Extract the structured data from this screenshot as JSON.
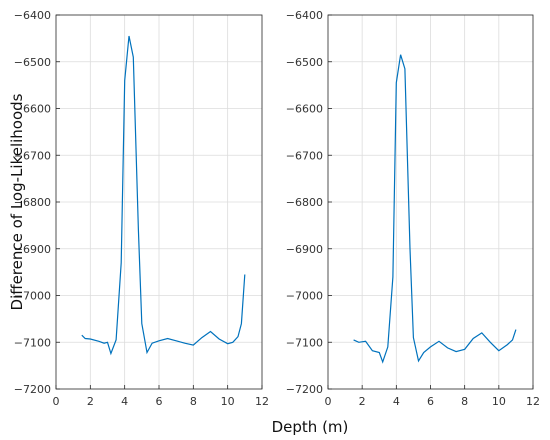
{
  "figure": {
    "xlabel": "Depth (m)",
    "ylabel": "Difference of Log-Likelihoods",
    "line_color": "#0072BD"
  },
  "chart_data": [
    {
      "type": "line",
      "title": "",
      "xlabel": "Depth (m)",
      "ylabel": "Difference of Log-Likelihoods",
      "xlim": [
        0,
        12
      ],
      "ylim": [
        -7200,
        -6400
      ],
      "xticks": [
        0,
        2,
        4,
        6,
        8,
        10,
        12
      ],
      "yticks": [
        -7200,
        -7100,
        -7000,
        -6900,
        -6800,
        -6700,
        -6600,
        -6500,
        -6400
      ],
      "grid": true,
      "legend": null,
      "series": [
        {
          "x": [
            1.5,
            1.7,
            2.0,
            2.5,
            2.8,
            3.0,
            3.2,
            3.5,
            3.8,
            4.0,
            4.25,
            4.5,
            4.8,
            5.0,
            5.3,
            5.6,
            6.0,
            6.5,
            7.0,
            7.5,
            8.0,
            8.5,
            9.0,
            9.5,
            10.0,
            10.3,
            10.6,
            10.8,
            11.0
          ],
          "y": [
            -7085,
            -7092,
            -7093,
            -7098,
            -7102,
            -7100,
            -7124,
            -7095,
            -6930,
            -6540,
            -6445,
            -6490,
            -6860,
            -7060,
            -7122,
            -7102,
            -7097,
            -7092,
            -7097,
            -7102,
            -7106,
            -7090,
            -7077,
            -7093,
            -7103,
            -7100,
            -7088,
            -7060,
            -6955
          ]
        }
      ]
    },
    {
      "type": "line",
      "title": "",
      "xlabel": "",
      "ylabel": "",
      "xlim": [
        0,
        12
      ],
      "ylim": [
        -7200,
        -6400
      ],
      "xticks": [
        0,
        2,
        4,
        6,
        8,
        10,
        12
      ],
      "yticks": [
        -7200,
        -7100,
        -7000,
        -6900,
        -6800,
        -6700,
        -6600,
        -6500,
        -6400
      ],
      "grid": true,
      "legend": null,
      "series": [
        {
          "x": [
            1.5,
            1.8,
            2.2,
            2.6,
            3.0,
            3.2,
            3.5,
            3.8,
            4.0,
            4.25,
            4.5,
            4.8,
            5.0,
            5.3,
            5.6,
            6.0,
            6.5,
            7.0,
            7.5,
            8.0,
            8.5,
            9.0,
            9.5,
            10.0,
            10.5,
            10.8,
            11.0
          ],
          "y": [
            -7095,
            -7100,
            -7098,
            -7118,
            -7122,
            -7142,
            -7110,
            -6960,
            -6545,
            -6485,
            -6515,
            -6900,
            -7090,
            -7140,
            -7122,
            -7110,
            -7098,
            -7112,
            -7120,
            -7115,
            -7092,
            -7080,
            -7100,
            -7118,
            -7105,
            -7095,
            -7073
          ]
        }
      ]
    }
  ]
}
